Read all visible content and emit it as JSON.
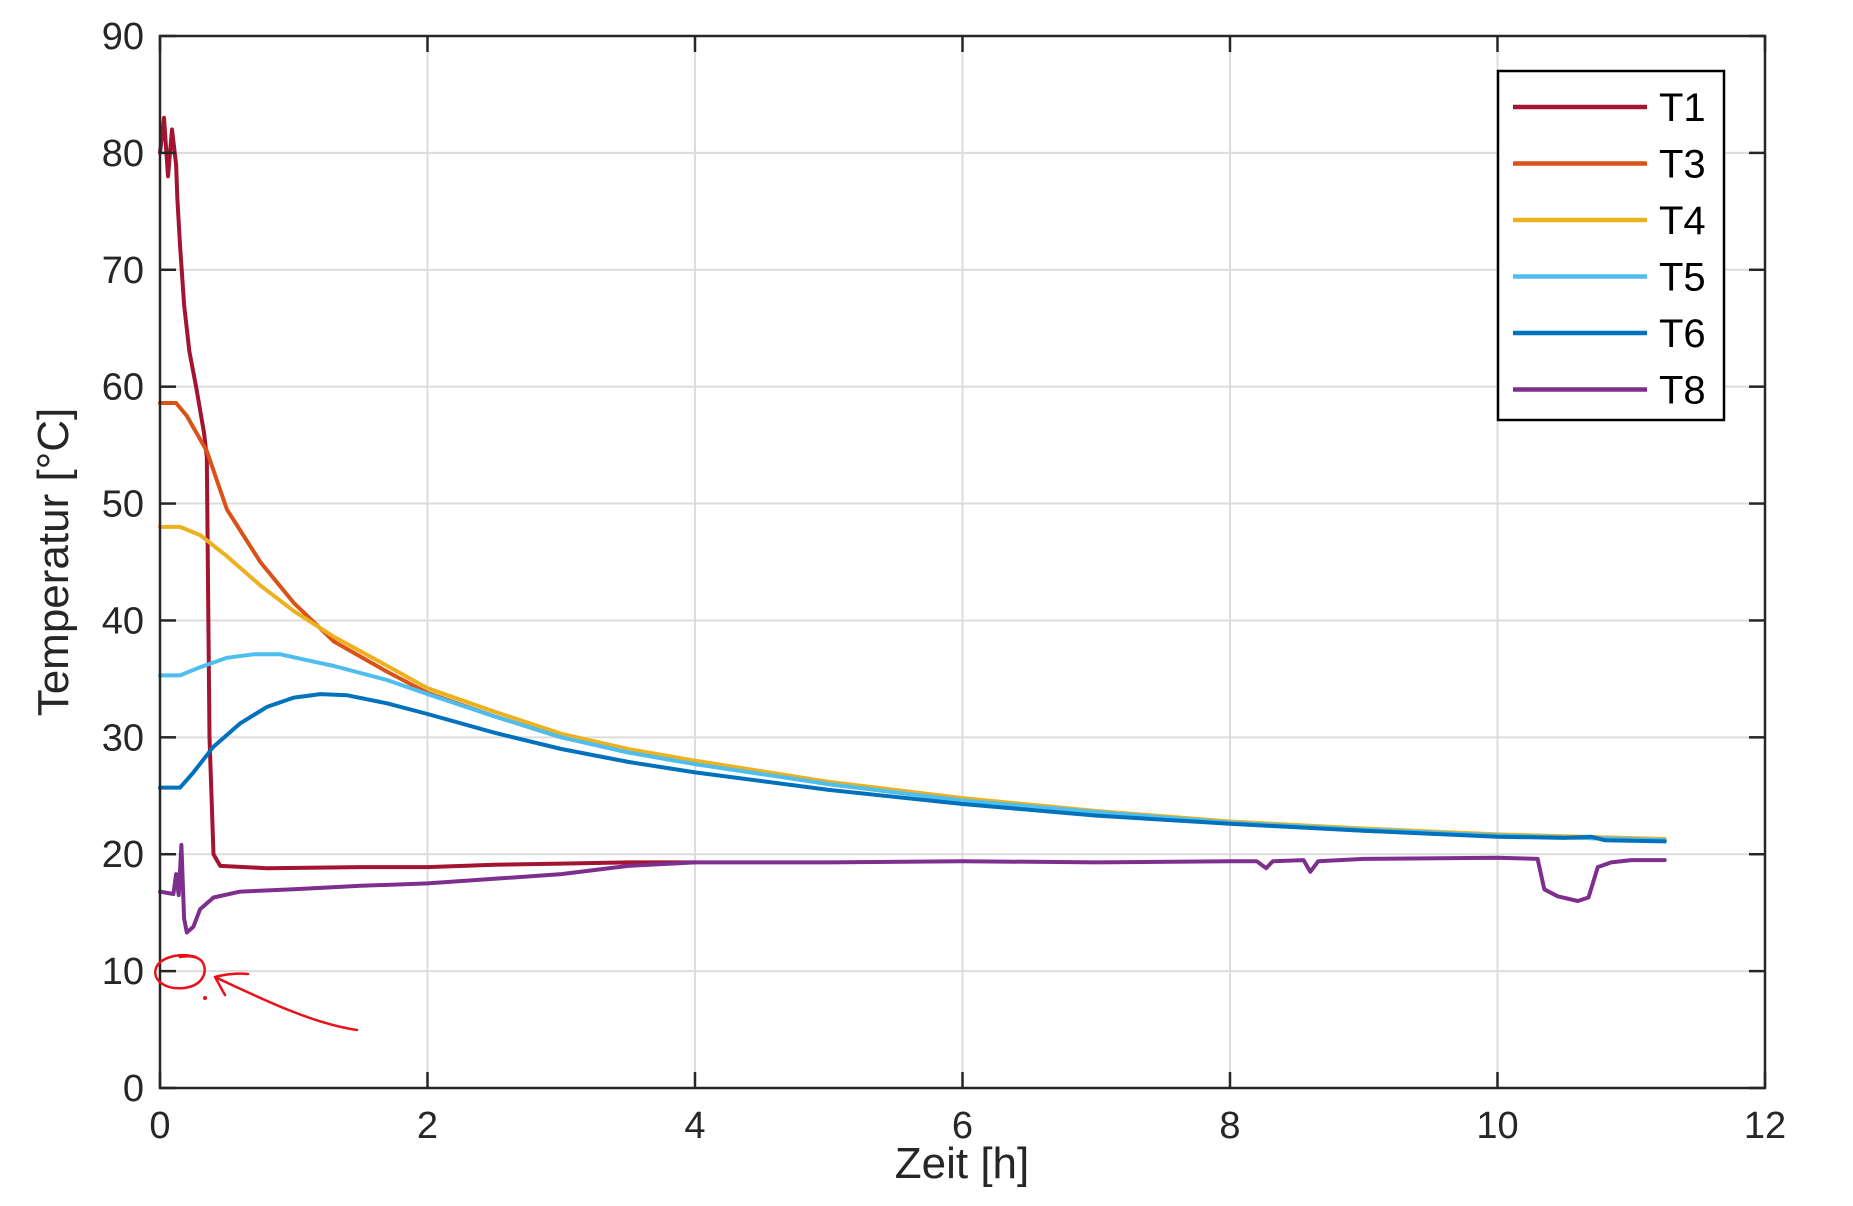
{
  "chart_data": {
    "type": "line",
    "title": "",
    "xlabel": "Zeit [h]",
    "ylabel": "Temperatur [°C]",
    "xlim": [
      0,
      12
    ],
    "ylim": [
      0,
      90
    ],
    "xticks": [
      "0",
      "2",
      "4",
      "6",
      "8",
      "10",
      "12"
    ],
    "yticks": [
      "0",
      "10",
      "20",
      "30",
      "40",
      "50",
      "60",
      "70",
      "80",
      "90"
    ],
    "grid": true,
    "legend_position": "top-right",
    "series": [
      {
        "name": "T1",
        "color": "#A2142F",
        "points": [
          [
            0,
            80
          ],
          [
            0.03,
            83
          ],
          [
            0.06,
            78
          ],
          [
            0.09,
            82
          ],
          [
            0.12,
            79
          ],
          [
            0.13,
            76
          ],
          [
            0.15,
            72
          ],
          [
            0.18,
            67
          ],
          [
            0.22,
            63
          ],
          [
            0.27,
            60
          ],
          [
            0.33,
            56
          ],
          [
            0.35,
            54
          ],
          [
            0.37,
            30
          ],
          [
            0.4,
            20
          ],
          [
            0.45,
            19
          ],
          [
            0.8,
            18.8
          ],
          [
            1.5,
            18.9
          ],
          [
            2,
            18.9
          ],
          [
            2.5,
            19.1
          ],
          [
            3,
            19.2
          ],
          [
            3.5,
            19.3
          ],
          [
            4,
            19.3
          ]
        ]
      },
      {
        "name": "T3",
        "color": "#D95319",
        "points": [
          [
            0,
            58.6
          ],
          [
            0.12,
            58.6
          ],
          [
            0.2,
            57.5
          ],
          [
            0.35,
            54.5
          ],
          [
            0.5,
            49.5
          ],
          [
            0.75,
            45
          ],
          [
            1,
            41.5
          ],
          [
            1.3,
            38.2
          ],
          [
            1.7,
            35.6
          ],
          [
            2,
            33.8
          ],
          [
            2.5,
            31.8
          ],
          [
            3,
            30
          ],
          [
            3.5,
            28.8
          ],
          [
            4,
            27.8
          ],
          [
            5,
            26
          ],
          [
            6,
            24.6
          ],
          [
            7,
            23.6
          ],
          [
            8,
            22.7
          ],
          [
            9,
            22
          ],
          [
            10,
            21.6
          ],
          [
            11.25,
            21.2
          ]
        ]
      },
      {
        "name": "T4",
        "color": "#EDB120",
        "points": [
          [
            0,
            48
          ],
          [
            0.15,
            48
          ],
          [
            0.3,
            47.3
          ],
          [
            0.5,
            45.5
          ],
          [
            0.75,
            43
          ],
          [
            1,
            40.8
          ],
          [
            1.3,
            38.6
          ],
          [
            1.7,
            36.1
          ],
          [
            2,
            34.2
          ],
          [
            2.5,
            32.2
          ],
          [
            3,
            30.3
          ],
          [
            3.5,
            29
          ],
          [
            4,
            28
          ],
          [
            5,
            26.2
          ],
          [
            6,
            24.8
          ],
          [
            7,
            23.7
          ],
          [
            8,
            22.8
          ],
          [
            9,
            22.2
          ],
          [
            10,
            21.7
          ],
          [
            11.25,
            21.3
          ]
        ]
      },
      {
        "name": "T5",
        "color": "#4DBEEE",
        "points": [
          [
            0,
            35.3
          ],
          [
            0.15,
            35.3
          ],
          [
            0.3,
            36
          ],
          [
            0.5,
            36.8
          ],
          [
            0.7,
            37.1
          ],
          [
            0.9,
            37.1
          ],
          [
            1.1,
            36.6
          ],
          [
            1.3,
            36.1
          ],
          [
            1.7,
            34.9
          ],
          [
            2,
            33.7
          ],
          [
            2.5,
            31.8
          ],
          [
            3,
            30
          ],
          [
            3.5,
            28.7
          ],
          [
            4,
            27.7
          ],
          [
            5,
            26
          ],
          [
            6,
            24.6
          ],
          [
            7,
            23.6
          ],
          [
            8,
            22.7
          ],
          [
            9,
            22.1
          ],
          [
            10,
            21.6
          ],
          [
            11.25,
            21.2
          ]
        ]
      },
      {
        "name": "T6",
        "color": "#0072BD",
        "points": [
          [
            0,
            25.7
          ],
          [
            0.15,
            25.7
          ],
          [
            0.25,
            27
          ],
          [
            0.4,
            29.2
          ],
          [
            0.6,
            31.2
          ],
          [
            0.8,
            32.6
          ],
          [
            1,
            33.4
          ],
          [
            1.2,
            33.7
          ],
          [
            1.4,
            33.6
          ],
          [
            1.7,
            32.9
          ],
          [
            2,
            32
          ],
          [
            2.5,
            30.4
          ],
          [
            3,
            29
          ],
          [
            3.5,
            27.9
          ],
          [
            4,
            27
          ],
          [
            5,
            25.5
          ],
          [
            6,
            24.3
          ],
          [
            7,
            23.3
          ],
          [
            8,
            22.6
          ],
          [
            9,
            22
          ],
          [
            10,
            21.5
          ],
          [
            10.5,
            21.4
          ],
          [
            10.7,
            21.5
          ],
          [
            10.8,
            21.2
          ],
          [
            11.25,
            21.1
          ]
        ]
      },
      {
        "name": "T8",
        "color": "#7E2F8E",
        "points": [
          [
            0,
            16.8
          ],
          [
            0.1,
            16.6
          ],
          [
            0.12,
            18.3
          ],
          [
            0.14,
            16.5
          ],
          [
            0.16,
            20.8
          ],
          [
            0.18,
            14.5
          ],
          [
            0.2,
            13.3
          ],
          [
            0.25,
            13.8
          ],
          [
            0.3,
            15.3
          ],
          [
            0.4,
            16.3
          ],
          [
            0.6,
            16.8
          ],
          [
            1,
            17
          ],
          [
            1.5,
            17.3
          ],
          [
            2,
            17.5
          ],
          [
            2.5,
            17.9
          ],
          [
            3,
            18.3
          ],
          [
            3.5,
            19
          ],
          [
            4,
            19.3
          ],
          [
            5,
            19.3
          ],
          [
            6,
            19.4
          ],
          [
            7,
            19.3
          ],
          [
            8,
            19.4
          ],
          [
            8.2,
            19.4
          ],
          [
            8.27,
            18.8
          ],
          [
            8.32,
            19.4
          ],
          [
            8.55,
            19.5
          ],
          [
            8.6,
            18.5
          ],
          [
            8.66,
            19.4
          ],
          [
            9,
            19.6
          ],
          [
            10,
            19.7
          ],
          [
            10.3,
            19.6
          ],
          [
            10.35,
            17
          ],
          [
            10.45,
            16.4
          ],
          [
            10.6,
            16
          ],
          [
            10.68,
            16.3
          ],
          [
            10.75,
            18.9
          ],
          [
            10.85,
            19.3
          ],
          [
            11,
            19.5
          ],
          [
            11.25,
            19.5
          ]
        ]
      }
    ]
  },
  "annotation": {
    "color": "#E8101A"
  }
}
